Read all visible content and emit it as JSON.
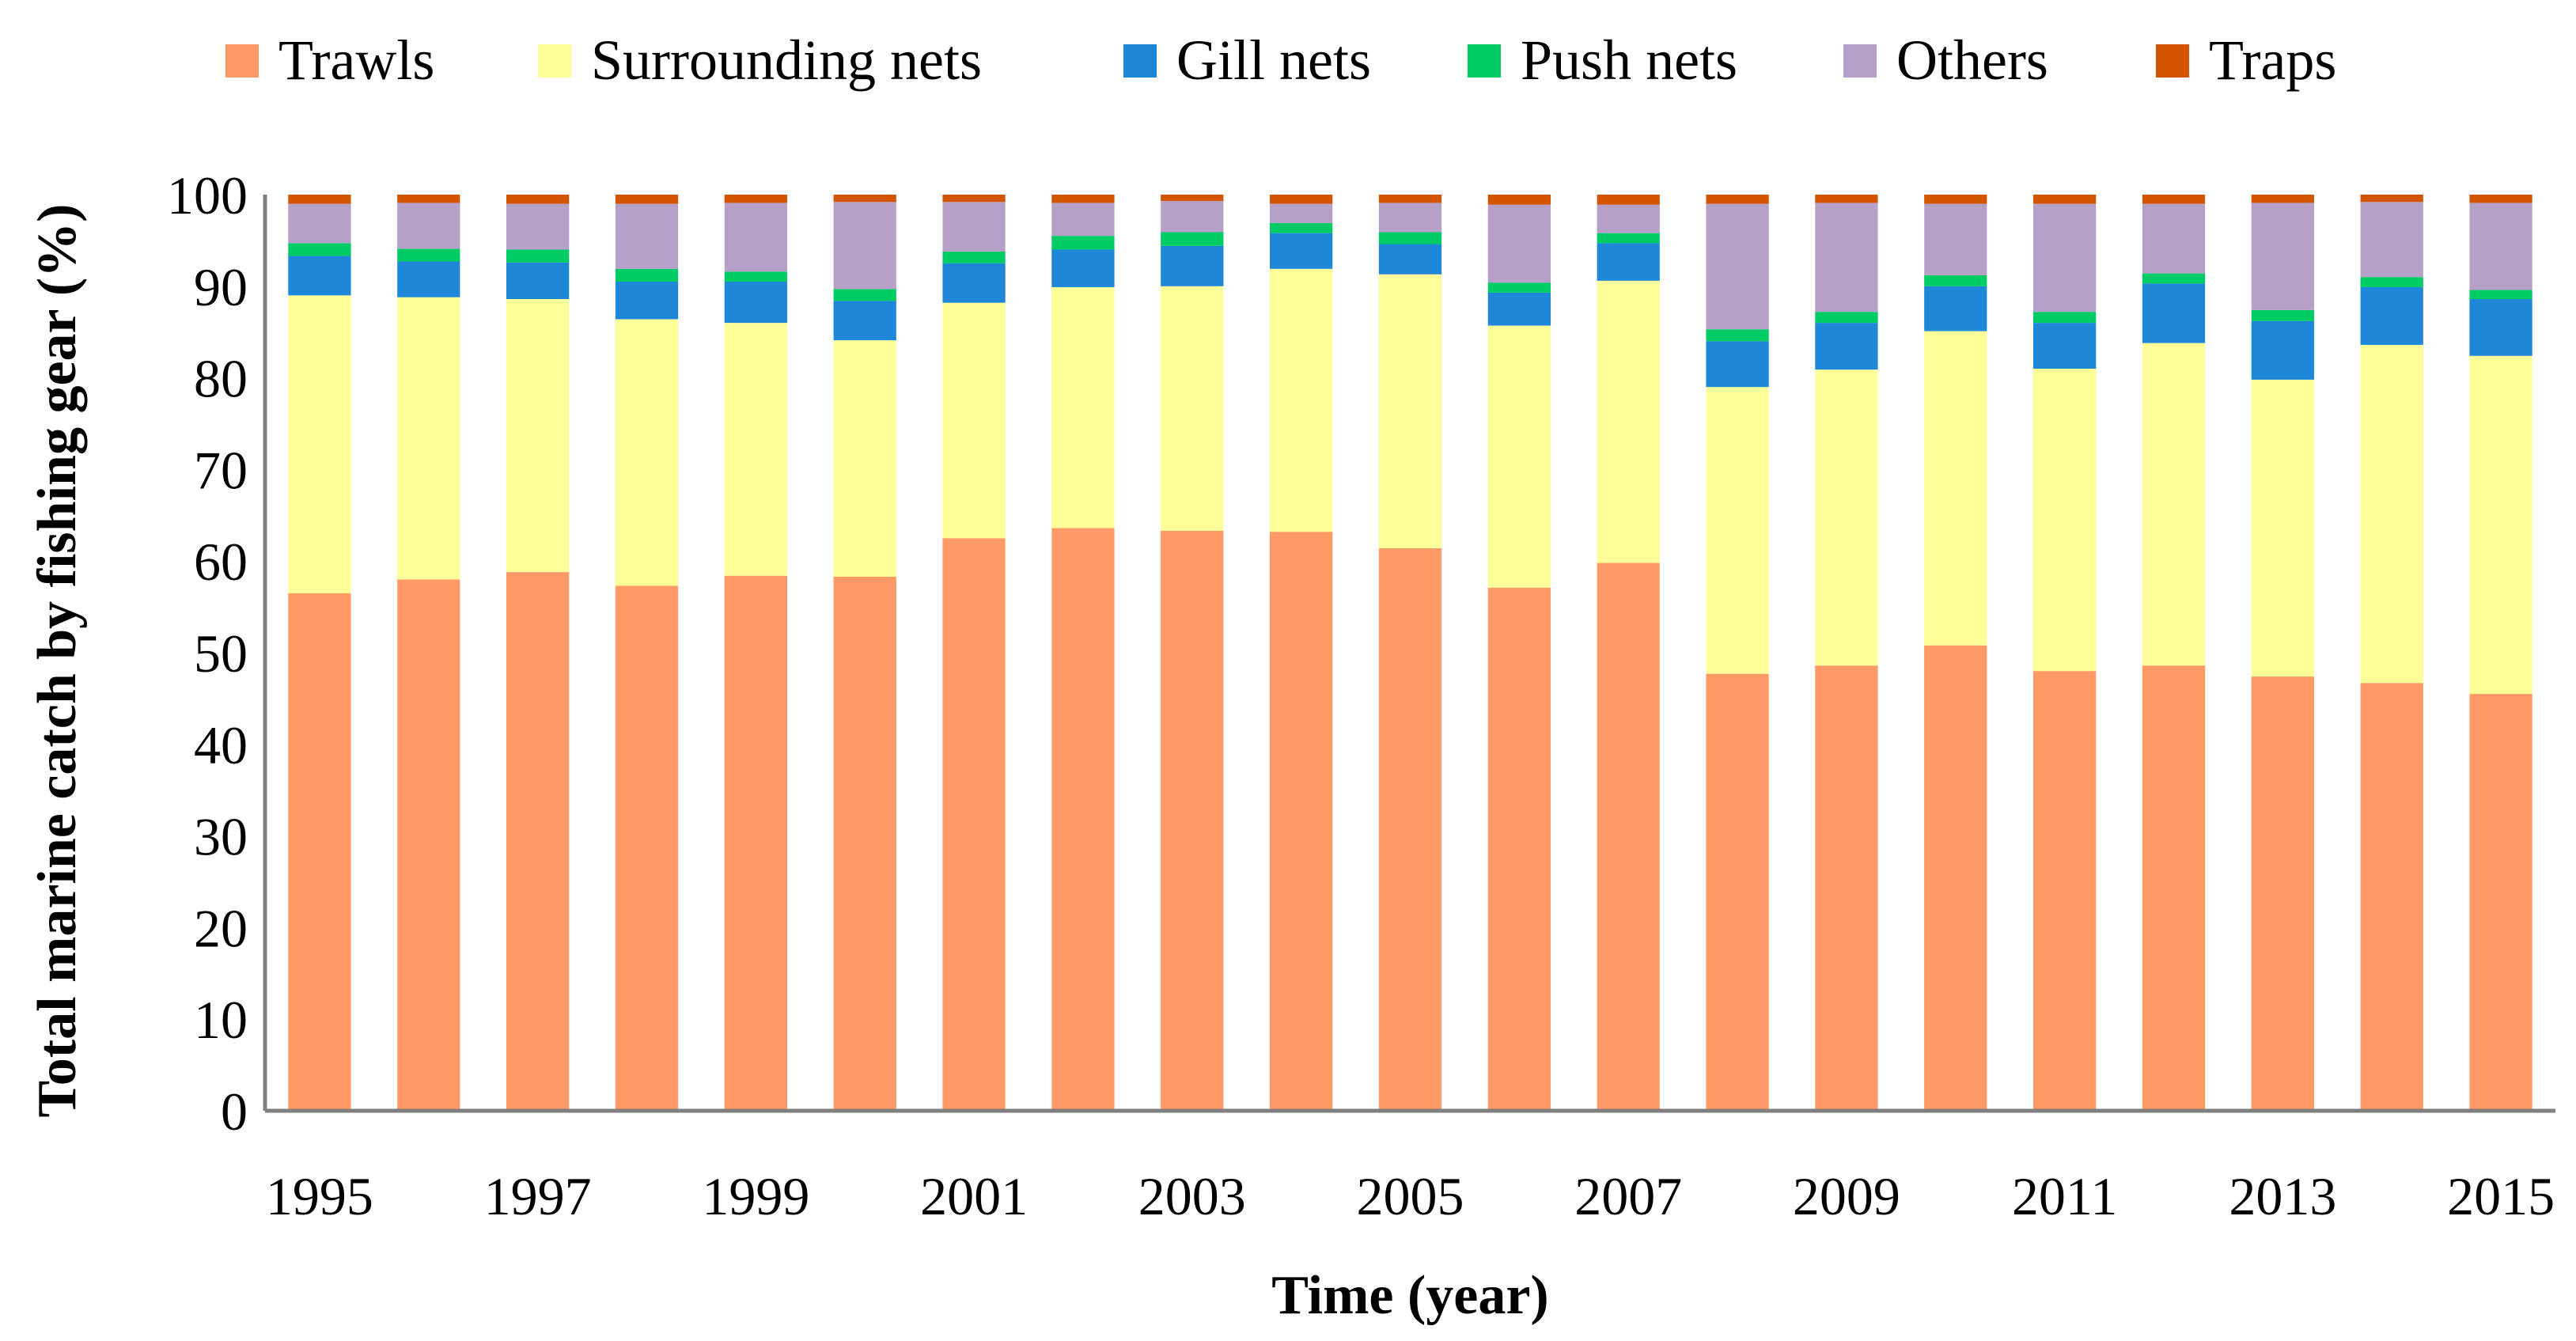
{
  "chart_data": {
    "type": "bar",
    "stacked": true,
    "title": "",
    "xlabel": "Time (year)",
    "ylabel": "Total marine catch by fishing gear (%)",
    "ylim": [
      0,
      100
    ],
    "yticks": [
      0,
      10,
      20,
      30,
      40,
      50,
      60,
      70,
      80,
      90,
      100
    ],
    "grid": false,
    "legend_position": "top",
    "categories": [
      "1995",
      "1996",
      "1997",
      "1998",
      "1999",
      "2000",
      "2001",
      "2002",
      "2003",
      "2004",
      "2005",
      "2006",
      "2007",
      "2008",
      "2009",
      "2010",
      "2011",
      "2012",
      "2013",
      "2014",
      "2015"
    ],
    "xtick_labels": [
      "1995",
      "1997",
      "1999",
      "2001",
      "2003",
      "2005",
      "2007",
      "2009",
      "2011",
      "2013",
      "2015"
    ],
    "series": [
      {
        "name": "Trawls",
        "color": "#FF9966",
        "values": [
          56.5,
          58.0,
          58.8,
          57.3,
          58.4,
          58.3,
          62.5,
          63.6,
          63.3,
          63.2,
          61.4,
          57.1,
          59.8,
          47.7,
          48.6,
          50.8,
          48.0,
          48.6,
          47.4,
          46.7,
          45.5
        ]
      },
      {
        "name": "Surrounding nets",
        "color": "#FFFF99",
        "values": [
          32.5,
          30.8,
          29.8,
          29.1,
          27.6,
          25.8,
          25.7,
          26.3,
          26.7,
          28.7,
          29.9,
          28.6,
          30.8,
          31.3,
          32.3,
          34.3,
          33.0,
          35.2,
          32.4,
          36.9,
          36.9
        ]
      },
      {
        "name": "Gill nets",
        "color": "#1F87D8",
        "values": [
          4.3,
          3.9,
          4.0,
          4.1,
          4.5,
          4.3,
          4.3,
          4.1,
          4.4,
          3.9,
          3.3,
          3.6,
          4.1,
          5.0,
          5.1,
          4.9,
          5.0,
          6.5,
          6.4,
          6.3,
          6.2
        ]
      },
      {
        "name": "Push nets",
        "color": "#00CC66",
        "values": [
          1.4,
          1.4,
          1.4,
          1.4,
          1.1,
          1.3,
          1.3,
          1.5,
          1.5,
          1.1,
          1.3,
          1.1,
          1.1,
          1.3,
          1.2,
          1.2,
          1.2,
          1.1,
          1.2,
          1.1,
          1.0
        ]
      },
      {
        "name": "Others",
        "color": "#B6A0C8",
        "values": [
          4.3,
          5.0,
          5.0,
          7.1,
          7.5,
          9.5,
          5.4,
          3.6,
          3.4,
          2.1,
          3.2,
          8.5,
          3.1,
          13.7,
          11.9,
          7.8,
          11.8,
          7.6,
          11.7,
          8.2,
          9.5
        ]
      },
      {
        "name": "Traps",
        "color": "#D45500",
        "values": [
          1.0,
          0.9,
          1.0,
          1.0,
          0.9,
          0.8,
          0.8,
          0.9,
          0.7,
          1.0,
          0.9,
          1.1,
          1.1,
          1.0,
          0.9,
          1.0,
          1.0,
          1.0,
          0.9,
          0.8,
          0.9
        ]
      }
    ]
  }
}
